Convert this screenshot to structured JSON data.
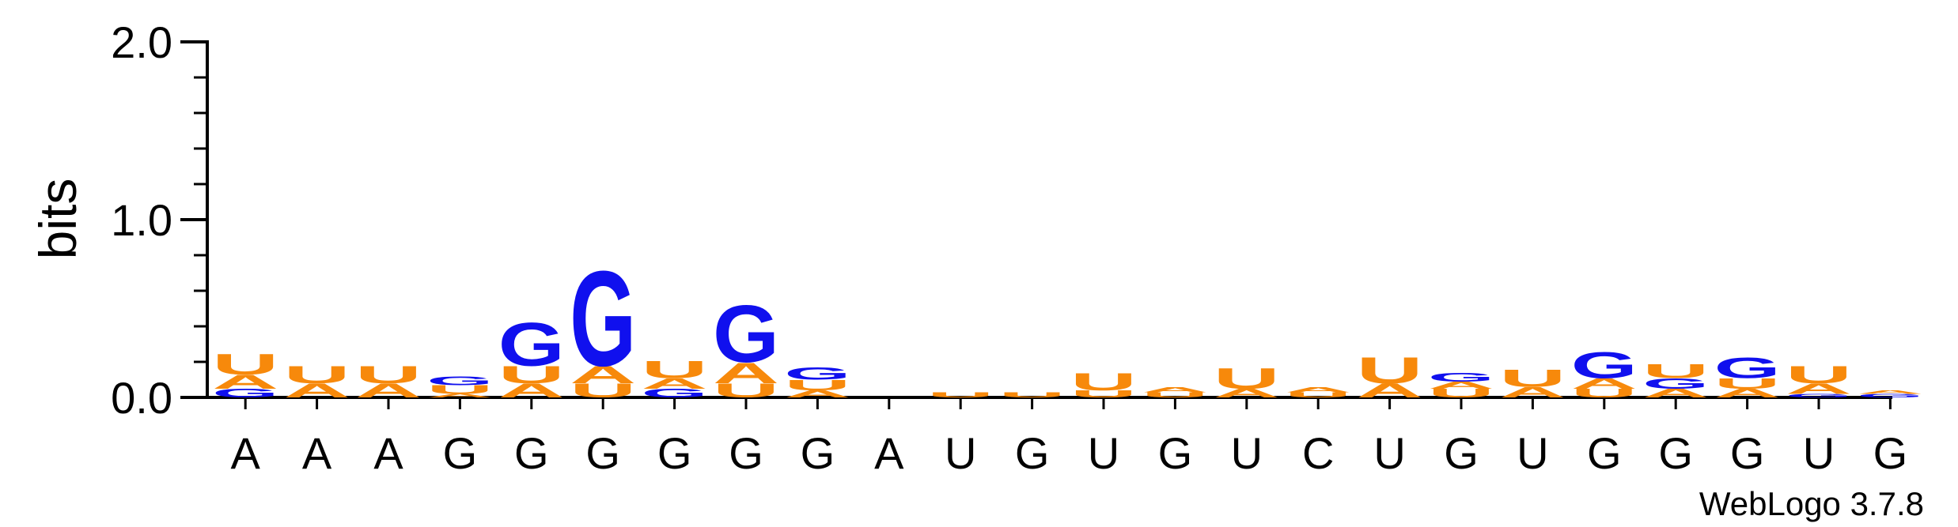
{
  "colors": {
    "A": "#f7890b",
    "U": "#f7890b",
    "G": "#1010ee",
    "C": "#1010ee",
    "axis": "#000000"
  },
  "chart_data": {
    "type": "sequence-logo",
    "ylabel": "bits",
    "ylim": [
      0,
      2.0
    ],
    "yticks": [
      "0.0",
      "1.0",
      "2.0"
    ],
    "credit": "WebLogo 3.7.8",
    "positions": [
      {
        "label": "A",
        "stack": [
          [
            "G",
            0.05
          ],
          [
            "A",
            0.08
          ],
          [
            "U",
            0.12
          ]
        ]
      },
      {
        "label": "A",
        "stack": [
          [
            "A",
            0.08
          ],
          [
            "U",
            0.1
          ]
        ]
      },
      {
        "label": "A",
        "stack": [
          [
            "A",
            0.08
          ],
          [
            "U",
            0.1
          ]
        ]
      },
      {
        "label": "G",
        "stack": [
          [
            "A",
            0.02
          ],
          [
            "U",
            0.05
          ],
          [
            "G",
            0.05
          ]
        ]
      },
      {
        "label": "G",
        "stack": [
          [
            "A",
            0.08
          ],
          [
            "U",
            0.1
          ],
          [
            "G",
            0.25
          ]
        ]
      },
      {
        "label": "G",
        "stack": [
          [
            "U",
            0.08
          ],
          [
            "A",
            0.1
          ],
          [
            "G",
            0.55
          ]
        ]
      },
      {
        "label": "G",
        "stack": [
          [
            "G",
            0.05
          ],
          [
            "A",
            0.06
          ],
          [
            "U",
            0.1
          ]
        ]
      },
      {
        "label": "G",
        "stack": [
          [
            "U",
            0.08
          ],
          [
            "A",
            0.12
          ],
          [
            "G",
            0.33
          ]
        ]
      },
      {
        "label": "G",
        "stack": [
          [
            "A",
            0.04
          ],
          [
            "U",
            0.06
          ],
          [
            "G",
            0.07
          ]
        ]
      },
      {
        "label": "A",
        "stack": []
      },
      {
        "label": "U",
        "stack": [
          [
            "U",
            0.03
          ]
        ]
      },
      {
        "label": "G",
        "stack": [
          [
            "U",
            0.03
          ]
        ]
      },
      {
        "label": "U",
        "stack": [
          [
            "U",
            0.04
          ],
          [
            "U",
            0.1
          ]
        ]
      },
      {
        "label": "G",
        "stack": [
          [
            "U",
            0.03
          ],
          [
            "A",
            0.03
          ]
        ]
      },
      {
        "label": "U",
        "stack": [
          [
            "A",
            0.05
          ],
          [
            "U",
            0.12
          ]
        ]
      },
      {
        "label": "C",
        "stack": [
          [
            "U",
            0.03
          ],
          [
            "A",
            0.03
          ]
        ]
      },
      {
        "label": "U",
        "stack": [
          [
            "A",
            0.08
          ],
          [
            "U",
            0.15
          ]
        ]
      },
      {
        "label": "G",
        "stack": [
          [
            "U",
            0.05
          ],
          [
            "A",
            0.04
          ],
          [
            "G",
            0.05
          ]
        ]
      },
      {
        "label": "U",
        "stack": [
          [
            "A",
            0.06
          ],
          [
            "U",
            0.1
          ]
        ]
      },
      {
        "label": "G",
        "stack": [
          [
            "U",
            0.05
          ],
          [
            "A",
            0.06
          ],
          [
            "G",
            0.15
          ]
        ]
      },
      {
        "label": "G",
        "stack": [
          [
            "A",
            0.05
          ],
          [
            "G",
            0.06
          ],
          [
            "U",
            0.08
          ]
        ]
      },
      {
        "label": "G",
        "stack": [
          [
            "A",
            0.05
          ],
          [
            "U",
            0.06
          ],
          [
            "G",
            0.12
          ]
        ]
      },
      {
        "label": "U",
        "stack": [
          [
            "G",
            0.02
          ],
          [
            "A",
            0.06
          ],
          [
            "U",
            0.1
          ]
        ]
      },
      {
        "label": "G",
        "stack": [
          [
            "G",
            0.02
          ],
          [
            "A",
            0.02
          ]
        ]
      }
    ]
  }
}
